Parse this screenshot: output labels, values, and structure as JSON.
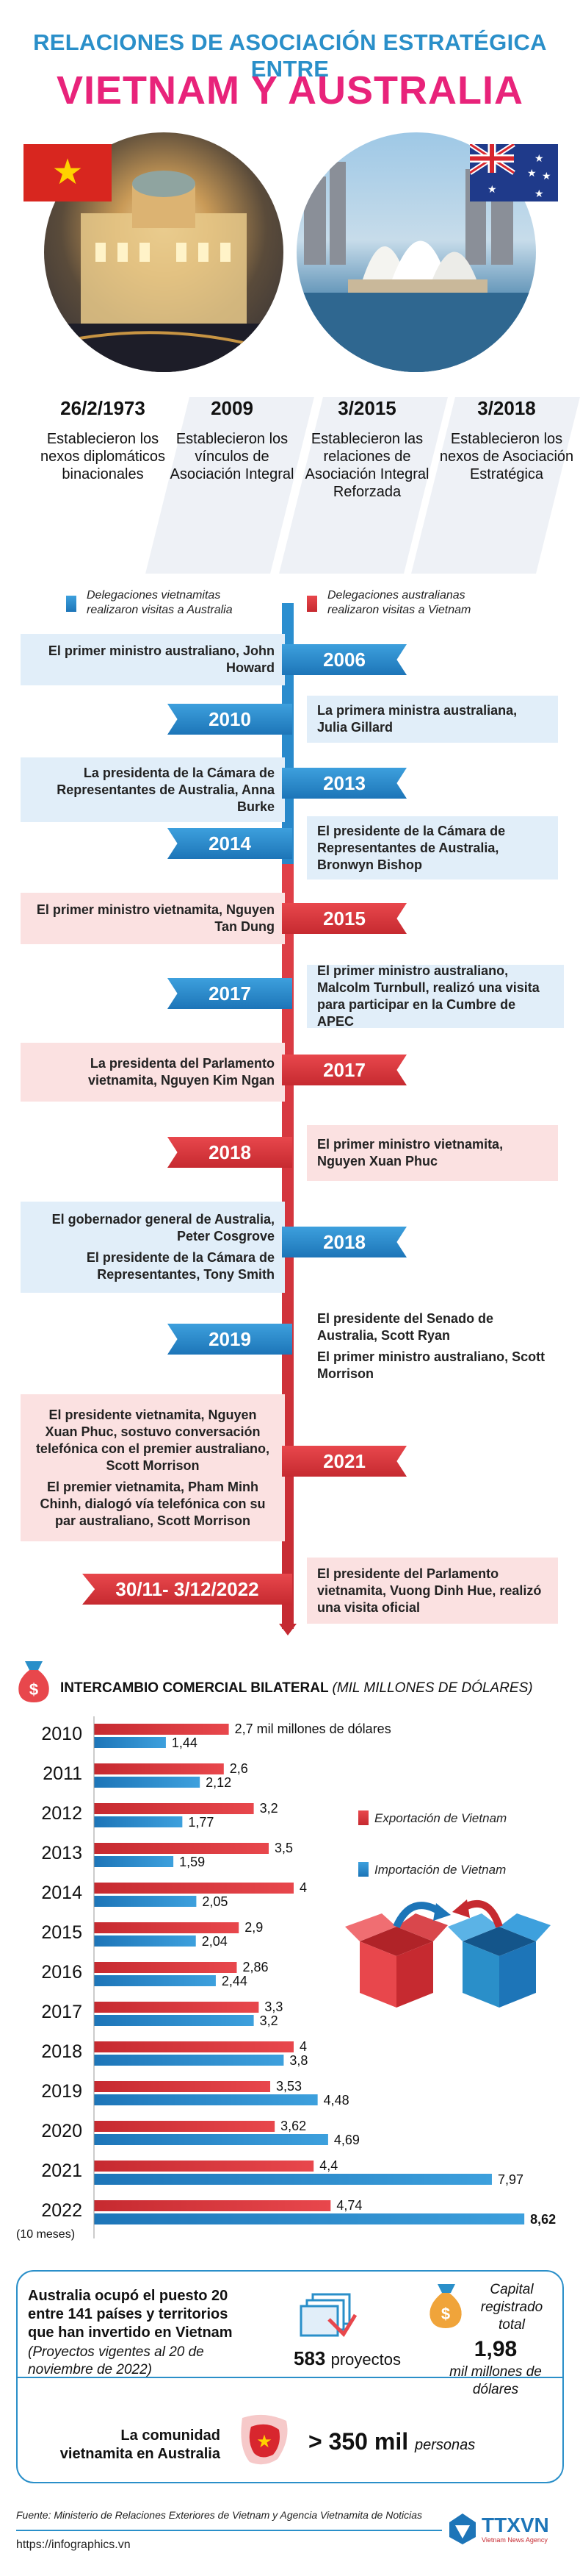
{
  "header": {
    "title_line1": "RELACIONES DE ASOCIACIÓN ESTRATÉGICA ENTRE",
    "title_line2": "VIETNAM Y AUSTRALIA"
  },
  "milestones": [
    {
      "date": "26/2/1973",
      "text": "Establecieron los nexos diplomáticos binacionales"
    },
    {
      "date": "2009",
      "text": "Establecieron los vínculos de Asociación Integral"
    },
    {
      "date": "3/2015",
      "text": "Establecieron las relaciones de Asociación Integral Reforzada"
    },
    {
      "date": "3/2018",
      "text": "Establecieron los nexos de Asociación Estratégica"
    }
  ],
  "legend": {
    "vn": "Delegaciones vietnamitas realizaron visitas a Australia",
    "au": "Delegaciones australianas realizaron visitas a Vietnam",
    "vn_color": "#2a8fc9",
    "au_color": "#d8262e"
  },
  "timeline": {
    "y2006": {
      "year": "2006",
      "text": "El primer ministro australiano, John Howard"
    },
    "y2010": {
      "year": "2010",
      "text": "La primera ministra australiana, Julia Gillard"
    },
    "y2013": {
      "year": "2013",
      "text": "La presidenta de la Cámara de Representantes de Australia, Anna Burke"
    },
    "y2014": {
      "year": "2014",
      "text": "El presidente de la Cámara de Representantes de Australia, Bronwyn Bishop"
    },
    "y2015": {
      "year": "2015",
      "text": "El primer ministro vietnamita, Nguyen Tan Dung"
    },
    "y2017a": {
      "year": "2017",
      "text": "El primer ministro australiano, Malcolm Turnbull, realizó una visita para participar en la Cumbre de APEC"
    },
    "y2017b": {
      "year": "2017",
      "text": "La presidenta del Parlamento vietnamita, Nguyen Kim Ngan"
    },
    "y2018a": {
      "year": "2018",
      "text": "El primer ministro vietnamita, Nguyen Xuan Phuc"
    },
    "y2018b": {
      "year": "2018",
      "text1": "El gobernador general de Australia, Peter Cosgrove",
      "text2": "El presidente de la Cámara de Representantes, Tony Smith"
    },
    "y2019": {
      "year": "2019",
      "text1": "El presidente del Senado de Australia, Scott Ryan",
      "text2": "El primer ministro australiano, Scott Morrison"
    },
    "y2021": {
      "year": "2021",
      "text1": "El presidente vietnamita, Nguyen Xuan Phuc, sostuvo conversación telefónica con el premier australiano, Scott Morrison",
      "text2": "El premier vietnamita, Pham Minh Chinh, dialogó vía telefónica con su par australiano, Scott Morrison"
    },
    "y2022": {
      "year": "30/11- 3/12/2022",
      "text": "El presidente del Parlamento vietnamita, Vuong Dinh Hue, realizó una visita oficial"
    }
  },
  "trade": {
    "title": "INTERCAMBIO COMERCIAL BILATERAL",
    "unit": "(MIL MILLONES DE DÓLARES)",
    "legend_export": "Exportación de Vietnam",
    "legend_import": "Importación de Vietnam",
    "note_2022": "(10 meses)",
    "first_label": "2,7 mil millones de dólares",
    "years": [
      "2010",
      "2011",
      "2012",
      "2013",
      "2014",
      "2015",
      "2016",
      "2017",
      "2018",
      "2019",
      "2020",
      "2021",
      "2022"
    ],
    "export_labels": [
      "2,7 mil millones de dólares",
      "2,6",
      "3,2",
      "3,5",
      "4",
      "2,9",
      "2,86",
      "3,3",
      "4",
      "3,53",
      "3,62",
      "4,4",
      "4,74"
    ],
    "import_labels": [
      "1,44",
      "2,12",
      "1,77",
      "1,59",
      "2,05",
      "2,04",
      "2,44",
      "3,2",
      "3,8",
      "4,48",
      "4,69",
      "7,97",
      "8,62"
    ]
  },
  "chart_data": {
    "type": "bar",
    "title": "INTERCAMBIO COMERCIAL BILATERAL (MIL MILLONES DE DÓLARES)",
    "categories": [
      "2010",
      "2011",
      "2012",
      "2013",
      "2014",
      "2015",
      "2016",
      "2017",
      "2018",
      "2019",
      "2020",
      "2021",
      "2022"
    ],
    "series": [
      {
        "name": "Exportación de Vietnam",
        "values": [
          2.7,
          2.6,
          3.2,
          3.5,
          4,
          2.9,
          2.86,
          3.3,
          4,
          3.53,
          3.62,
          4.4,
          4.74
        ]
      },
      {
        "name": "Importación de Vietnam",
        "values": [
          1.44,
          2.12,
          1.77,
          1.59,
          2.05,
          2.04,
          2.44,
          3.2,
          3.8,
          4.48,
          4.69,
          7.97,
          8.62
        ]
      }
    ],
    "orientation": "horizontal"
  },
  "investment": {
    "text_bold": "Australia ocupó el puesto 20 entre 141 países y territorios que han invertido en Vietnam",
    "text_it": "(Proyectos vigentes al 20 de noviembre de 2022)",
    "projects_num": "583",
    "projects_label": "proyectos",
    "capital_label": "Capital registrado total",
    "capital_num": "1,98",
    "capital_unit": "mil millones de dólares",
    "community_label": "La comunidad vietnamita en Australia",
    "community_num": "> 350 mil",
    "community_unit": "personas"
  },
  "footer": {
    "source": "Fuente: Ministerio de Relaciones Exteriores de Vietnam y Agencia Vietnamita de Noticias",
    "url": "https://infographics.vn",
    "logo": "TTXVN",
    "logo_sub": "Vietnam News Agency"
  }
}
